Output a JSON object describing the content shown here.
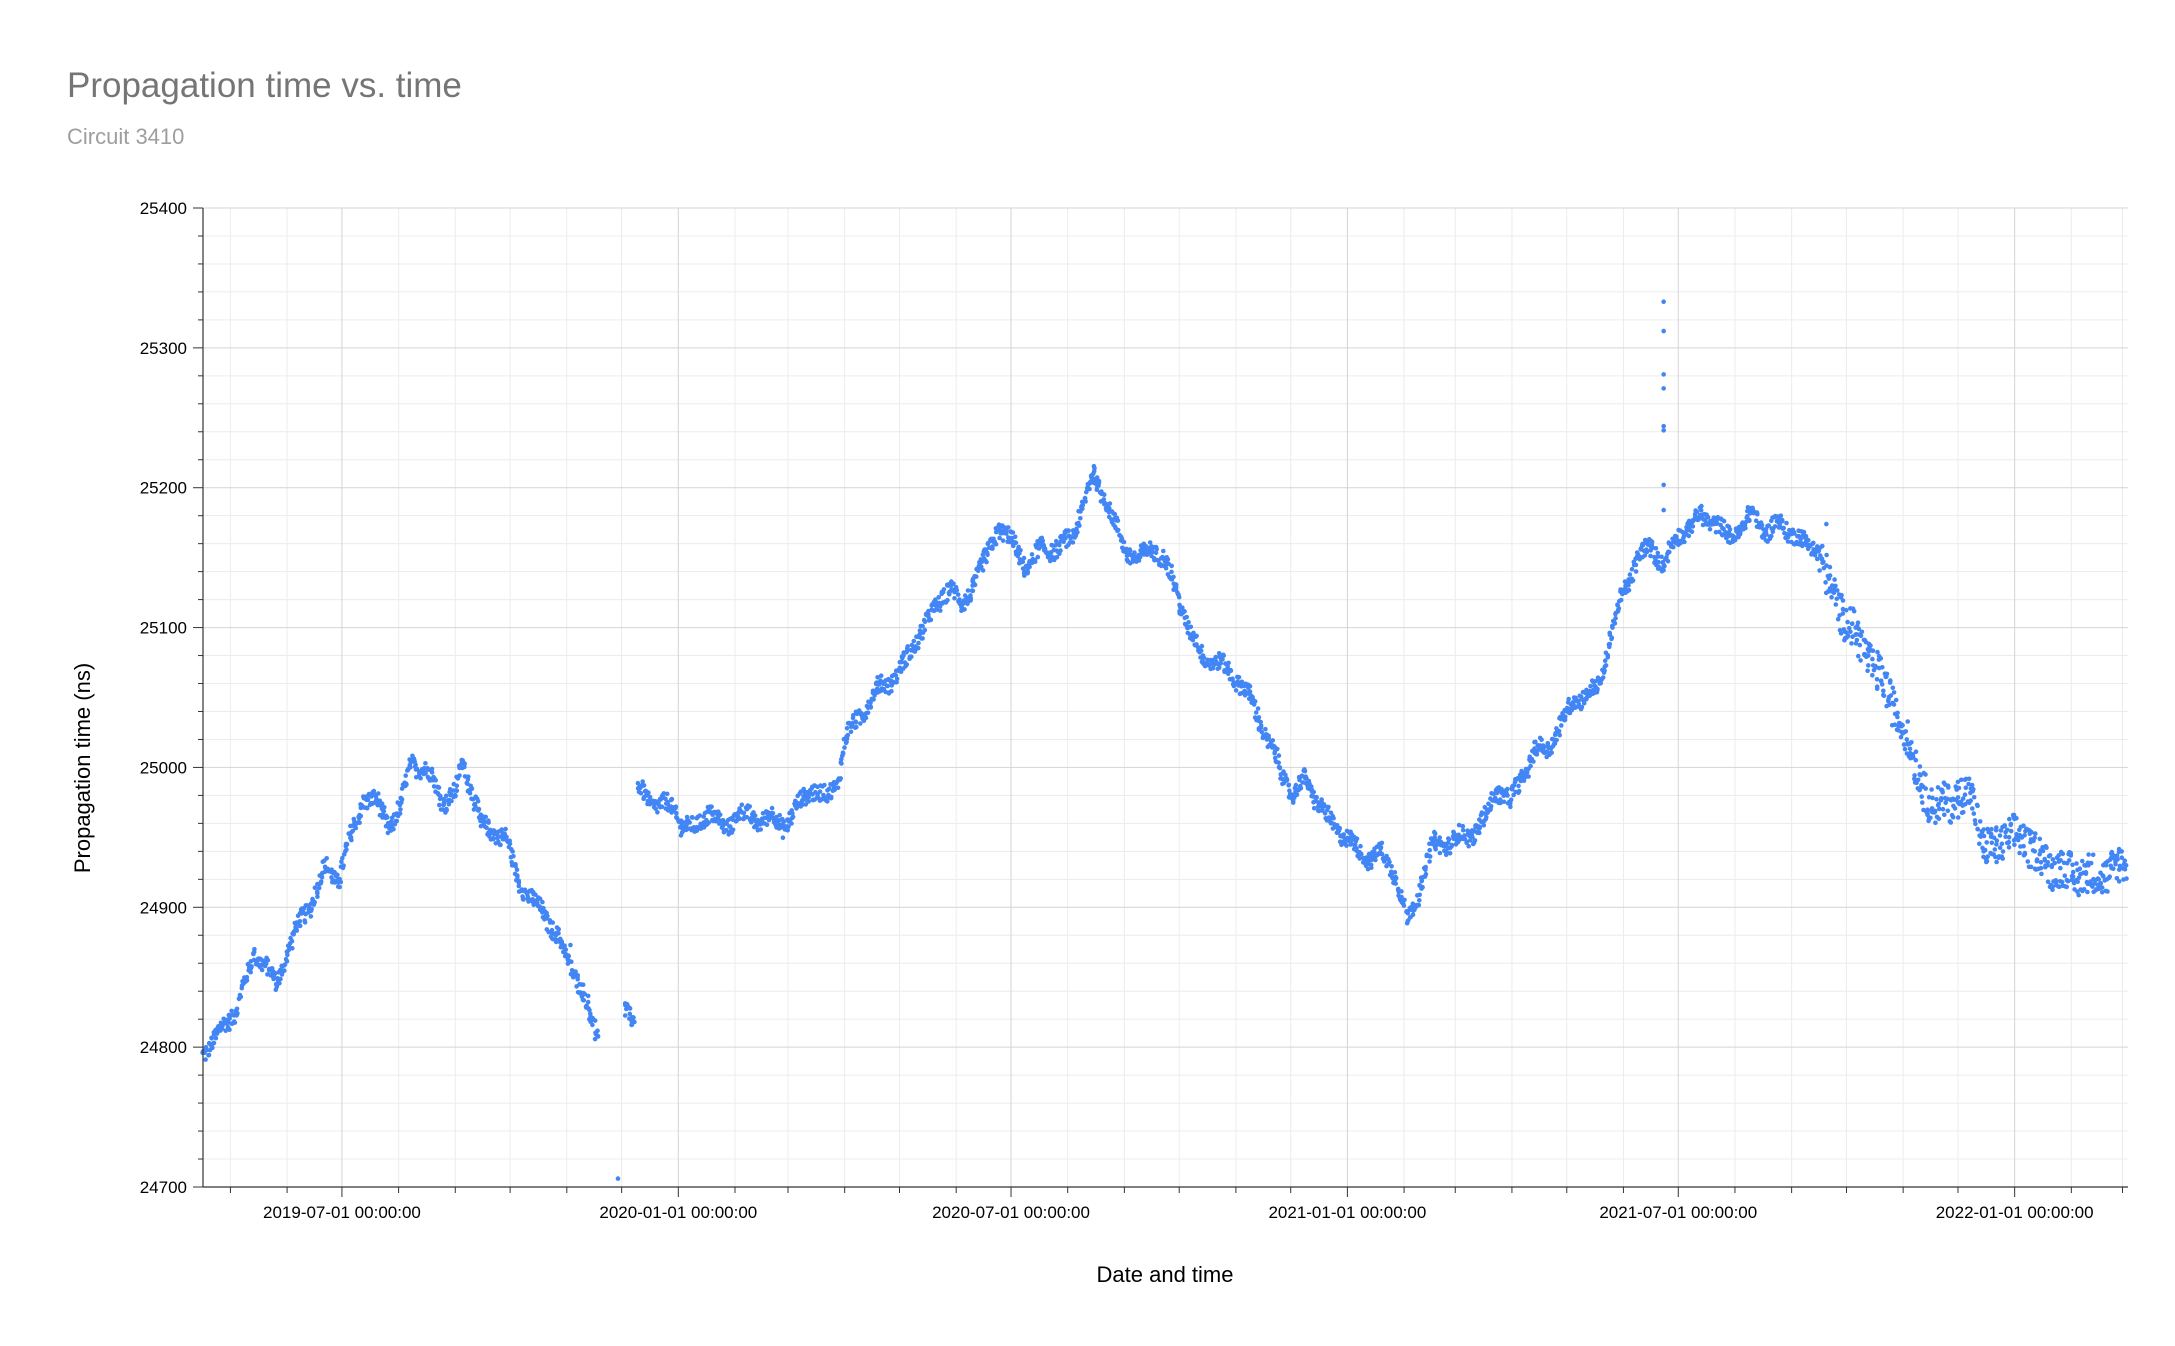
{
  "chart_data": {
    "type": "scatter",
    "title": "Propagation time vs. time",
    "subtitle": "Circuit 3410",
    "xlabel": "Date and time",
    "ylabel": "Propagation time (ns)",
    "xlim": [
      "2019-04-16",
      "2022-03-04"
    ],
    "ylim": [
      24700,
      25400
    ],
    "y_ticks": [
      24700,
      24800,
      24900,
      25000,
      25100,
      25200,
      25300,
      25400
    ],
    "x_ticks": [
      {
        "date": "2019-07-01",
        "label": "2019-07-01 00:00:00"
      },
      {
        "date": "2020-01-01",
        "label": "2020-01-01 00:00:00"
      },
      {
        "date": "2020-07-01",
        "label": "2020-07-01 00:00:00"
      },
      {
        "date": "2021-01-01",
        "label": "2021-01-01 00:00:00"
      },
      {
        "date": "2021-07-01",
        "label": "2021-07-01 00:00:00"
      },
      {
        "date": "2022-01-01",
        "label": "2022-01-01 00:00:00"
      }
    ],
    "grid": true,
    "legend": "none",
    "color": "#4285f4",
    "series": [
      {
        "points": [
          [
            "2019-04-16",
            24797
          ],
          [
            "2019-04-22",
            24803
          ],
          [
            "2019-04-28",
            24818
          ],
          [
            "2019-05-04",
            24826
          ],
          [
            "2019-05-10",
            24850
          ],
          [
            "2019-05-14",
            24868
          ],
          [
            "2019-05-20",
            24858
          ],
          [
            "2019-05-26",
            24845
          ],
          [
            "2019-06-01",
            24868
          ],
          [
            "2019-06-08",
            24890
          ],
          [
            "2019-06-15",
            24905
          ],
          [
            "2019-06-22",
            24928
          ],
          [
            "2019-06-29",
            24920
          ],
          [
            "2019-07-06",
            24950
          ],
          [
            "2019-07-13",
            24978
          ],
          [
            "2019-07-20",
            24975
          ],
          [
            "2019-07-27",
            24958
          ],
          [
            "2019-08-02",
            24970
          ],
          [
            "2019-08-08",
            25005
          ],
          [
            "2019-08-14",
            24998
          ],
          [
            "2019-08-20",
            24992
          ],
          [
            "2019-08-26",
            24975
          ],
          [
            "2019-09-01",
            24980
          ],
          [
            "2019-09-05",
            25005
          ],
          [
            "2019-09-10",
            24985
          ],
          [
            "2019-09-15",
            24958
          ],
          [
            "2019-09-22",
            24955
          ],
          [
            "2019-09-29",
            24948
          ],
          [
            "2019-10-05",
            24922
          ],
          [
            "2019-10-12",
            24905
          ],
          [
            "2019-10-19",
            24898
          ],
          [
            "2019-10-26",
            24880
          ],
          [
            "2019-11-02",
            24862
          ],
          [
            "2019-11-08",
            24845
          ],
          [
            "2019-11-14",
            24822
          ],
          [
            "2019-11-18",
            24808
          ]
        ]
      },
      {
        "points": [
          [
            "2019-12-03",
            24830
          ],
          [
            "2019-12-08",
            24818
          ],
          [
            "2019-12-10",
            24985
          ],
          [
            "2019-12-18",
            24975
          ],
          [
            "2019-12-28",
            24972
          ],
          [
            "2020-01-03",
            24960
          ],
          [
            "2020-01-10",
            24955
          ],
          [
            "2020-01-18",
            24970
          ],
          [
            "2020-01-26",
            24955
          ],
          [
            "2020-02-03",
            24968
          ],
          [
            "2020-02-12",
            24962
          ],
          [
            "2020-02-20",
            24965
          ],
          [
            "2020-02-28",
            24958
          ],
          [
            "2020-03-06",
            24972
          ],
          [
            "2020-03-14",
            24985
          ],
          [
            "2020-03-22",
            24978
          ],
          [
            "2020-03-28",
            24990
          ],
          [
            "2020-04-02",
            25022
          ],
          [
            "2020-04-10",
            25038
          ],
          [
            "2020-04-18",
            25055
          ],
          [
            "2020-04-26",
            25062
          ],
          [
            "2020-05-04",
            25075
          ],
          [
            "2020-05-12",
            25095
          ],
          [
            "2020-05-20",
            25112
          ],
          [
            "2020-05-28",
            25130
          ],
          [
            "2020-06-04",
            25115
          ],
          [
            "2020-06-10",
            25130
          ],
          [
            "2020-06-17",
            25148
          ],
          [
            "2020-06-24",
            25172
          ],
          [
            "2020-07-02",
            25160
          ],
          [
            "2020-07-10",
            25142
          ],
          [
            "2020-07-18",
            25158
          ],
          [
            "2020-07-26",
            25155
          ],
          [
            "2020-08-03",
            25165
          ],
          [
            "2020-08-09",
            25185
          ],
          [
            "2020-08-15",
            25210
          ],
          [
            "2020-08-21",
            25195
          ],
          [
            "2020-08-27",
            25172
          ],
          [
            "2020-09-02",
            25155
          ],
          [
            "2020-09-09",
            25148
          ],
          [
            "2020-09-16",
            25158
          ],
          [
            "2020-09-23",
            25148
          ],
          [
            "2020-09-30",
            25125
          ],
          [
            "2020-10-07",
            25095
          ],
          [
            "2020-10-14",
            25080
          ],
          [
            "2020-10-21",
            25075
          ],
          [
            "2020-10-28",
            25070
          ],
          [
            "2020-11-04",
            25058
          ],
          [
            "2020-11-11",
            25045
          ],
          [
            "2020-11-18",
            25020
          ],
          [
            "2020-11-25",
            25000
          ],
          [
            "2020-12-02",
            24980
          ],
          [
            "2020-12-09",
            24992
          ],
          [
            "2020-12-16",
            24975
          ],
          [
            "2020-12-23",
            24960
          ],
          [
            "2020-12-30",
            24952
          ],
          [
            "2021-01-06",
            24942
          ],
          [
            "2021-01-13",
            24935
          ],
          [
            "2021-01-20",
            24938
          ],
          [
            "2021-01-27",
            24925
          ],
          [
            "2021-02-03",
            24890
          ],
          [
            "2021-02-10",
            24915
          ],
          [
            "2021-02-17",
            24945
          ],
          [
            "2021-02-24",
            24945
          ],
          [
            "2021-03-03",
            24950
          ],
          [
            "2021-03-10",
            24952
          ],
          [
            "2021-03-17",
            24962
          ],
          [
            "2021-03-24",
            24985
          ],
          [
            "2021-03-31",
            24975
          ],
          [
            "2021-04-07",
            24995
          ],
          [
            "2021-04-14",
            25012
          ],
          [
            "2021-04-21",
            25015
          ],
          [
            "2021-04-28",
            25030
          ],
          [
            "2021-05-05",
            25050
          ],
          [
            "2021-05-12",
            25050
          ],
          [
            "2021-05-19",
            25060
          ],
          [
            "2021-05-26",
            25100
          ],
          [
            "2021-06-02",
            25128
          ],
          [
            "2021-06-09",
            25150
          ],
          [
            "2021-06-16",
            25158
          ],
          [
            "2021-06-23",
            25145
          ],
          [
            "2021-06-30",
            25165
          ],
          [
            "2021-07-07",
            25172
          ],
          [
            "2021-07-14",
            25180
          ],
          [
            "2021-07-21",
            25175
          ],
          [
            "2021-07-28",
            25165
          ],
          [
            "2021-08-04",
            25170
          ],
          [
            "2021-08-11",
            25182
          ],
          [
            "2021-08-18",
            25168
          ],
          [
            "2021-08-25",
            25175
          ],
          [
            "2021-09-01",
            25168
          ],
          [
            "2021-09-08",
            25160
          ],
          [
            "2021-09-15",
            25158
          ],
          [
            "2021-09-22",
            25128
          ],
          [
            "2021-09-29",
            25110
          ],
          [
            "2021-10-06",
            25095
          ],
          [
            "2021-10-13",
            25080
          ],
          [
            "2021-10-20",
            25062
          ],
          [
            "2021-10-27",
            25045
          ],
          [
            "2021-11-03",
            25020
          ],
          [
            "2021-11-10",
            24995
          ],
          [
            "2021-11-17",
            24968
          ],
          [
            "2021-11-24",
            24978
          ],
          [
            "2021-12-01",
            24975
          ],
          [
            "2021-12-08",
            24985
          ],
          [
            "2021-12-15",
            24940
          ],
          [
            "2021-12-22",
            24945
          ],
          [
            "2021-12-29",
            24950
          ],
          [
            "2022-01-05",
            24950
          ],
          [
            "2022-01-12",
            24940
          ],
          [
            "2022-01-19",
            24930
          ],
          [
            "2022-01-26",
            24928
          ],
          [
            "2022-02-02",
            24922
          ],
          [
            "2022-02-09",
            24925
          ],
          [
            "2022-02-16",
            24920
          ],
          [
            "2022-02-23",
            24928
          ],
          [
            "2022-03-03",
            24930
          ]
        ]
      },
      {
        "outliers": [
          [
            "2019-11-03",
            24873
          ],
          [
            "2019-11-29",
            24706
          ],
          [
            "2021-09-20",
            25174
          ],
          [
            "2021-06-23",
            25333
          ],
          [
            "2021-06-23",
            25312
          ],
          [
            "2021-06-23",
            25281
          ],
          [
            "2021-06-23",
            25271
          ],
          [
            "2021-06-23",
            25244
          ],
          [
            "2021-06-23",
            25241
          ],
          [
            "2021-06-23",
            25202
          ],
          [
            "2021-06-23",
            25184
          ]
        ]
      }
    ]
  }
}
